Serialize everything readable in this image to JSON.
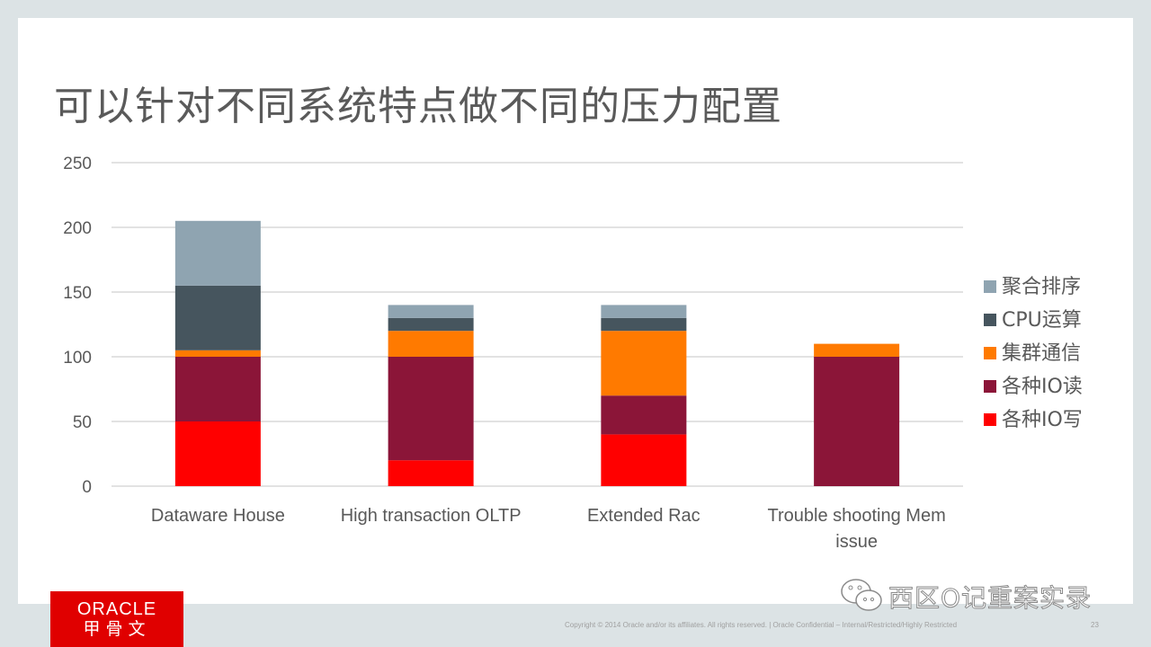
{
  "slide": {
    "title": "可以针对不同系统特点做不同的压力配置",
    "footer": {
      "copyright": "Copyright © 2014 Oracle and/or its affiliates. All rights reserved.  |  Oracle Confidential – Internal/Restricted/Highly Restricted",
      "page_number": "23"
    },
    "logo": {
      "en": "ORACLE",
      "cn": "甲骨文"
    },
    "watermark": "西区O记重案实录"
  },
  "chart_data": {
    "type": "bar",
    "stacked": true,
    "title": "",
    "xlabel": "",
    "ylabel": "",
    "ylim": [
      0,
      250
    ],
    "yticks": [
      "0",
      "50",
      "100",
      "150",
      "200",
      "250"
    ],
    "grid": true,
    "legend_position": "right",
    "categories": [
      "Dataware House",
      "High transaction OLTP",
      "Extended Rac",
      "Trouble shooting Mem issue"
    ],
    "category_lines": [
      [
        "Dataware House"
      ],
      [
        "High transaction OLTP"
      ],
      [
        "Extended Rac"
      ],
      [
        "Trouble shooting Mem",
        "issue"
      ]
    ],
    "series": [
      {
        "name": "各种IO写",
        "color": "#ff0000",
        "values": [
          50,
          20,
          40,
          0
        ]
      },
      {
        "name": "各种IO读",
        "color": "#8b1538",
        "values": [
          50,
          80,
          30,
          100
        ]
      },
      {
        "name": "集群通信",
        "color": "#ff7a00",
        "values": [
          5,
          20,
          50,
          10
        ]
      },
      {
        "name": "CPU运算",
        "color": "#46555e",
        "values": [
          50,
          10,
          10,
          0
        ]
      },
      {
        "name": "聚合排序",
        "color": "#8fa4b1",
        "values": [
          50,
          10,
          10,
          0
        ]
      }
    ],
    "legend_order": [
      "聚合排序",
      "CPU运算",
      "集群通信",
      "各种IO读",
      "各种IO写"
    ]
  }
}
